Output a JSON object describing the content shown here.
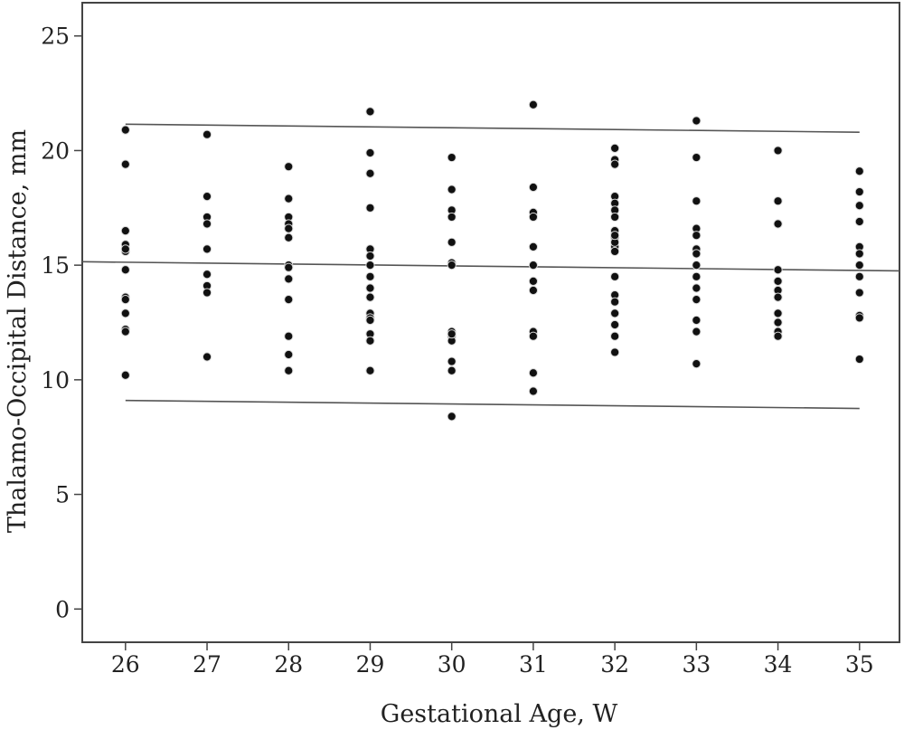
{
  "chart_data": {
    "type": "scatter",
    "title": "",
    "xlabel": "Gestational Age, W",
    "ylabel": "Thalamo-Occipital Distance, mm",
    "xlim": [
      25.47,
      35.49
    ],
    "ylim": [
      -1.45,
      26.45
    ],
    "xticks": [
      26,
      27,
      28,
      29,
      30,
      31,
      32,
      33,
      34,
      35
    ],
    "yticks": [
      0,
      5,
      10,
      15,
      20,
      25
    ],
    "xtick_labels": [
      "26",
      "27",
      "28",
      "29",
      "30",
      "31",
      "32",
      "33",
      "34",
      "35"
    ],
    "ytick_labels": [
      "0",
      "5",
      "10",
      "15",
      "20",
      "25"
    ],
    "grid": false,
    "legend": "none",
    "point_color": "#111111",
    "line_color": "#555555",
    "series": [
      {
        "x": [
          26,
          26,
          26,
          26,
          26,
          26,
          26,
          26,
          26,
          26,
          26,
          26,
          26,
          27,
          27,
          27,
          27,
          27,
          27,
          27,
          27,
          27,
          28,
          28,
          28,
          28,
          28,
          28,
          28,
          28,
          28,
          28,
          28,
          28,
          28,
          29,
          29,
          29,
          29,
          29,
          29,
          29,
          29,
          29,
          29,
          29,
          29,
          29,
          29,
          29,
          29,
          30,
          30,
          30,
          30,
          30,
          30,
          30,
          30,
          30,
          30,
          30,
          30,
          30,
          30,
          31,
          31,
          31,
          31,
          31,
          31,
          31,
          31,
          31,
          31,
          31,
          31,
          32,
          32,
          32,
          32,
          32,
          32,
          32,
          32,
          32,
          32,
          32,
          32,
          32,
          32,
          32,
          32,
          32,
          32,
          32,
          32,
          33,
          33,
          33,
          33,
          33,
          33,
          33,
          33,
          33,
          33,
          33,
          33,
          33,
          33,
          34,
          34,
          34,
          34,
          34,
          34,
          34,
          34,
          34,
          34,
          34,
          35,
          35,
          35,
          35,
          35,
          35,
          35,
          35,
          35,
          35,
          35,
          35
        ],
        "y": [
          20.9,
          19.4,
          16.5,
          15.9,
          15.6,
          14.8,
          13.6,
          12.9,
          12.2,
          12.1,
          10.2,
          13.5,
          15.7,
          20.7,
          18.0,
          17.1,
          16.8,
          15.7,
          14.6,
          14.1,
          13.8,
          11.0,
          19.3,
          17.9,
          17.1,
          16.8,
          16.2,
          15.0,
          14.4,
          13.5,
          11.9,
          11.1,
          10.4,
          16.6,
          14.9,
          21.7,
          19.9,
          19.0,
          17.5,
          15.7,
          15.0,
          14.5,
          14.0,
          13.6,
          12.9,
          12.7,
          12.0,
          11.7,
          10.4,
          15.4,
          12.6,
          19.7,
          18.3,
          17.4,
          17.1,
          16.0,
          15.1,
          15.0,
          12.1,
          11.9,
          11.7,
          10.8,
          10.4,
          8.4,
          12.0,
          22.0,
          18.4,
          17.3,
          17.1,
          15.8,
          15.0,
          14.3,
          13.9,
          12.1,
          11.9,
          10.3,
          9.5,
          20.1,
          19.6,
          19.4,
          18.0,
          17.7,
          17.4,
          17.1,
          16.5,
          16.2,
          15.8,
          15.6,
          14.5,
          13.7,
          13.4,
          12.9,
          12.4,
          11.9,
          11.2,
          16.0,
          16.3,
          21.3,
          19.7,
          17.8,
          16.6,
          16.3,
          15.7,
          15.0,
          14.5,
          14.0,
          13.5,
          12.6,
          12.1,
          10.7,
          15.5,
          20.0,
          17.8,
          16.8,
          14.8,
          14.3,
          13.9,
          13.6,
          12.9,
          12.5,
          12.1,
          11.9,
          19.1,
          18.2,
          17.6,
          16.9,
          15.8,
          15.5,
          15.0,
          14.5,
          13.8,
          12.8,
          10.9,
          12.7
        ]
      }
    ],
    "lines": [
      {
        "x": [
          26,
          35
        ],
        "y": [
          21.15,
          20.8
        ]
      },
      {
        "x": [
          25.47,
          35.49
        ],
        "y": [
          15.15,
          14.75
        ]
      },
      {
        "x": [
          26,
          35
        ],
        "y": [
          9.1,
          8.75
        ]
      }
    ]
  }
}
